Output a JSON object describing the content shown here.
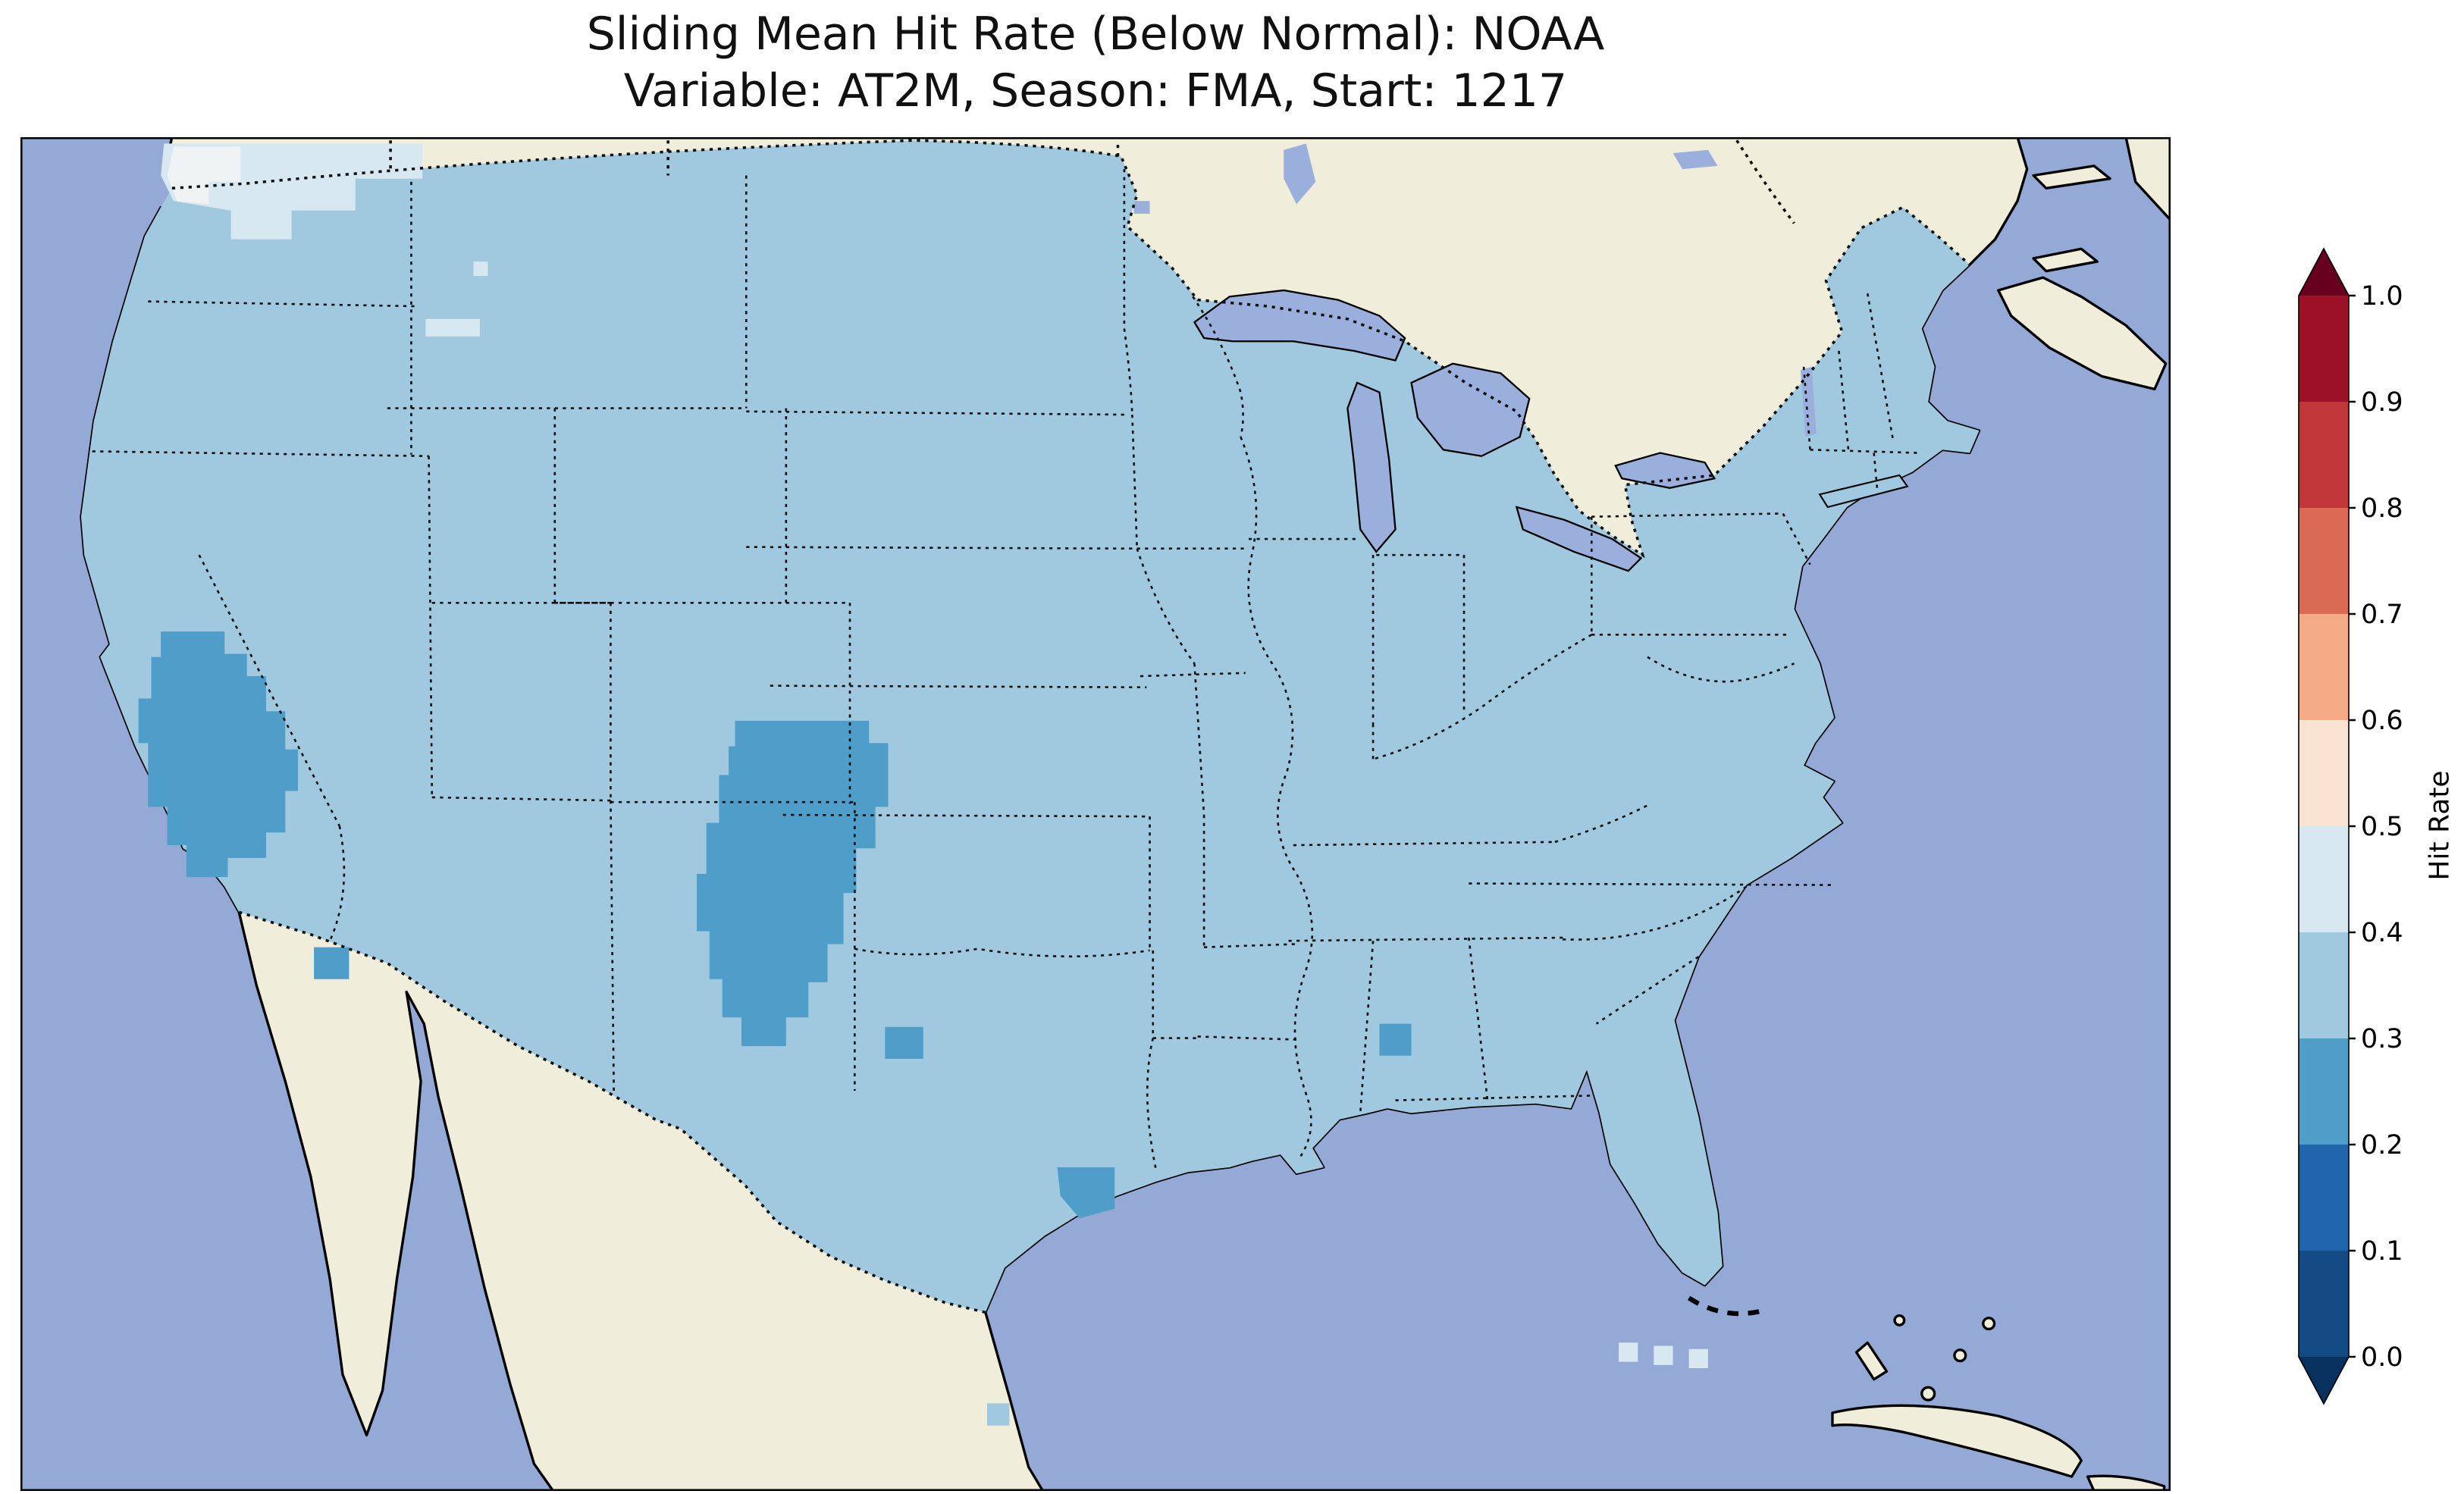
{
  "title": {
    "line1": "Sliding Mean Hit Rate (Below Normal): NOAA",
    "line2": "Variable: AT2M, Season: FMA, Start: 1217"
  },
  "colorbar": {
    "label": "Hit Rate",
    "ticks": [
      "1.0",
      "0.9",
      "0.8",
      "0.7",
      "0.6",
      "0.5",
      "0.4",
      "0.3",
      "0.2",
      "0.1",
      "0.0"
    ],
    "over_color": "#67001f",
    "under_color": "#083160",
    "bands_top_to_bottom": [
      "#9d1127",
      "#c13639",
      "#da6a53",
      "#f5ab85",
      "#fbe3d4",
      "#d7e8f1",
      "#a0c9e0",
      "#4f9dc9",
      "#2166ac",
      "#134b85"
    ]
  },
  "map": {
    "colors": {
      "ocean": "#95a9d6",
      "land": "#f0eeda",
      "lake": "#9bafdc",
      "rate_02_03": "#4f9dc9",
      "rate_03_04": "#a0c9e0",
      "rate_04_05": "#d7e8f1",
      "rate_05_06": "#eff3f3"
    }
  },
  "chart_data": {
    "type": "heatmap",
    "title": "Sliding Mean Hit Rate (Below Normal): NOAA",
    "subtitle": "Variable: AT2M, Season: FMA, Start: 1217",
    "colorbar_label": "Hit Rate",
    "colorbar_ticks": [
      0.0,
      0.1,
      0.2,
      0.3,
      0.4,
      0.5,
      0.6,
      0.7,
      0.8,
      0.9,
      1.0
    ],
    "colormap": "RdBu_r, discrete 0.1 bins, triangular extensions at both ends",
    "region": "Continental United States map with surrounding Canada, Mexico, Pacific, Gulf of Mexico and Atlantic",
    "values_by_area": [
      {
        "area": "Most of the continental United States",
        "hit_rate_bin": "0.3-0.4"
      },
      {
        "area": "Southern California and southern Nevada",
        "hit_rate_bin": "0.2-0.3"
      },
      {
        "area": "Eastern New Mexico extending into southeast Colorado and west Texas panhandle",
        "hit_rate_bin": "0.2-0.3"
      },
      {
        "area": "Small cells in southeast Arizona, central Texas, upper Texas Gulf coast near Houston, and central Alabama",
        "hit_rate_bin": "0.2-0.3"
      },
      {
        "area": "Northwest Washington",
        "hit_rate_bin": "0.4-0.5 with lighter pocket near the coast"
      },
      {
        "area": "A few coastal cells near southwest Florida",
        "hit_rate_bin": "0.4-0.5"
      }
    ]
  }
}
